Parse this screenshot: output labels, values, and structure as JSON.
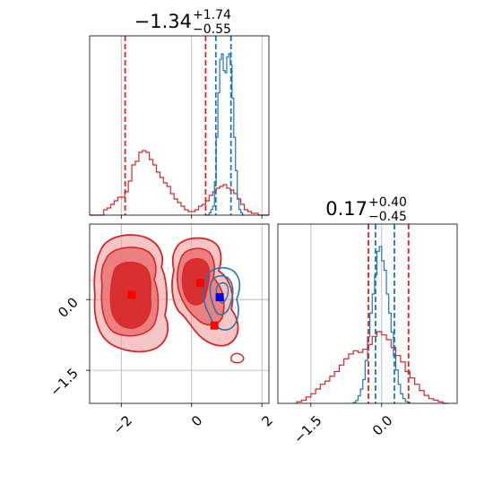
{
  "chart_data": {
    "type": "corner",
    "colors": {
      "red": "#d62728",
      "blue": "#1f77b4",
      "grid": "#b0b0b0"
    },
    "param1": {
      "title": {
        "median": "−1.34",
        "plus": "+1.74",
        "minus": "−0.55"
      },
      "range": [
        -2.9,
        2.2
      ],
      "ticks": [
        {
          "value": -2,
          "label": "−2"
        },
        {
          "value": 0,
          "label": "0"
        },
        {
          "value": 2,
          "label": "2"
        }
      ],
      "red_quantiles": [
        -1.89,
        0.4
      ],
      "blue_quantiles": [
        0.69,
        1.12
      ],
      "red_hist": {
        "start": -2.9,
        "width": 0.1,
        "values": [
          0,
          0,
          0,
          0,
          3,
          4,
          6,
          8,
          10,
          10,
          13,
          19,
          28,
          30,
          35,
          36,
          35,
          31,
          28,
          24,
          21,
          18,
          16,
          12,
          9,
          7,
          5,
          3,
          2,
          2,
          3,
          5,
          6,
          8,
          11,
          13,
          15,
          16,
          17,
          15,
          14,
          12,
          9,
          6,
          3,
          2,
          1,
          1,
          0,
          0,
          0
        ]
      },
      "blue_hist": {
        "start": 0.4,
        "width": 0.05,
        "values": [
          0,
          0,
          2,
          5,
          8,
          30,
          70,
          110,
          140,
          145,
          130,
          128,
          142,
          145,
          135,
          105,
          70,
          40,
          15,
          5,
          2,
          0
        ]
      }
    },
    "param2": {
      "title": {
        "median": "0.17",
        "plus": "+0.40",
        "minus": "−0.45"
      },
      "range": [
        -2.2,
        1.6
      ],
      "ticks": [
        {
          "value": -1.5,
          "label": "−1.5"
        },
        {
          "value": 0,
          "label": "0.0"
        }
      ],
      "red_quantiles": [
        -0.28,
        0.57
      ],
      "blue_quantiles": [
        -0.13,
        0.27
      ],
      "red_hist": {
        "start": -1.8,
        "width": 0.1,
        "values": [
          1,
          2,
          4,
          6,
          9,
          12,
          14,
          17,
          20,
          24,
          28,
          31,
          33,
          32,
          34,
          37,
          42,
          45,
          43,
          40,
          35,
          30,
          26,
          20,
          16,
          12,
          8,
          5,
          3,
          2,
          1,
          0
        ]
      },
      "blue_hist": {
        "start": -0.6,
        "width": 0.05,
        "values": [
          1,
          3,
          8,
          15,
          25,
          45,
          70,
          95,
          115,
          135,
          160,
          165,
          150,
          140,
          115,
          95,
          75,
          50,
          35,
          20,
          10,
          5,
          2,
          1
        ]
      }
    },
    "scatter": {
      "red_peaks": [
        {
          "x": -1.7,
          "y": 0.1
        },
        {
          "x": 0.25,
          "y": 0.35
        },
        {
          "x": 0.65,
          "y": -0.55
        }
      ],
      "blue_peaks": [
        {
          "x": 0.8,
          "y": 0.05
        }
      ]
    }
  }
}
